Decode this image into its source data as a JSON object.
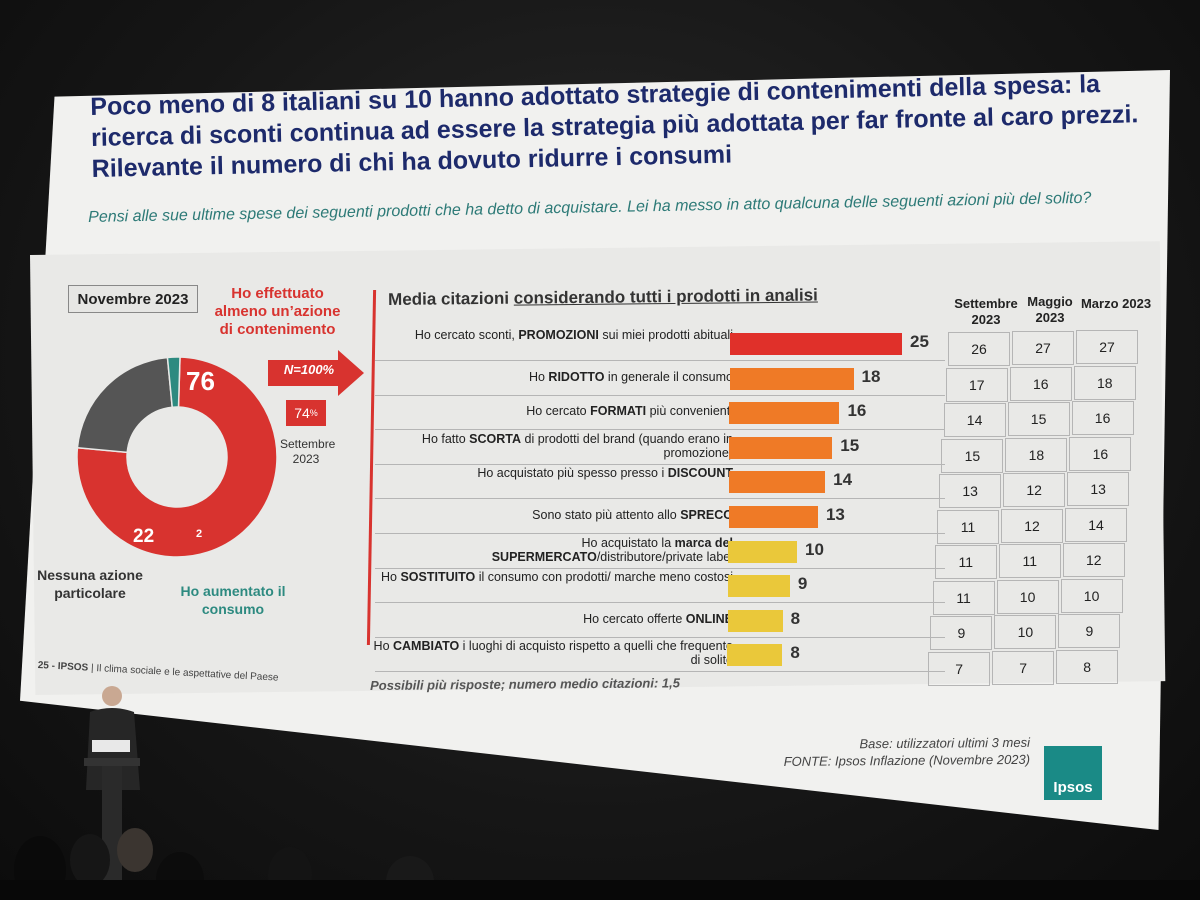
{
  "slide": {
    "title": "Poco meno di 8 italiani su 10 hanno adottato strategie di contenimenti della spesa: la ricerca di sconti continua ad essere la strategia più adottata per far fronte al caro prezzi. Rilevante il numero di chi ha dovuto ridurre i consumi",
    "subtitle": "Pensi alle sue ultime spese dei seguenti prodotti che ha detto di acquistare. Lei ha messo in atto qualcuna delle seguenti azioni più del solito?",
    "period_box": "Novembre 2023",
    "action_label": "Ho effettuato almeno un’azione di contenimento",
    "arrow_label": "N=100%",
    "sep_value": "74",
    "sep_unit": "%",
    "sep_label": "Settembre 2023",
    "donut": {
      "values": [
        76,
        22,
        2
      ],
      "labels": [
        "76",
        "22",
        "2"
      ],
      "colors": [
        "#d8332f",
        "#555555",
        "#2d8a80"
      ]
    },
    "legend_none": "Nessuna azione particolare",
    "legend_more": "Ho aumentato il consumo",
    "chart_title_prefix": "Media citazioni ",
    "chart_title_underlined": "considerando tutti i prodotti in analisi",
    "columns": [
      "Settembre 2023",
      "Maggio 2023",
      "Marzo 2023"
    ],
    "footnote": "Possibili più risposte; numero medio citazioni: 1,5",
    "page_footer_num": "25 - IPSOS",
    "page_footer_text": " | Il clima sociale e le aspettative del Paese",
    "base_line1": "Base: utilizzatori ultimi 3 mesi",
    "base_line2": "FONTE: Ipsos Inflazione (Novembre 2023)",
    "logo": "Ipsos"
  },
  "chart_data": {
    "type": "bar",
    "categories": [
      "Ho cercato sconti, PROMOZIONI sui miei prodotti abituali",
      "Ho RIDOTTO in generale il consumo",
      "Ho cercato FORMATI più convenienti",
      "Ho fatto SCORTA di prodotti del brand (quando erano in promozione)",
      "Ho acquistato più spesso presso i DISCOUNT",
      "Sono stato più attento allo SPRECO",
      "Ho acquistato la marca del SUPERMERCATO/distributore/private label",
      "Ho SOSTITUITO il consumo con prodotti/ marche meno costosi",
      "Ho cercato offerte ONLINE",
      "Ho CAMBIATO i luoghi di acquisto rispetto a quelli che frequento di solito"
    ],
    "rows": [
      {
        "pre": "Ho cercato sconti, ",
        "b": "PROMOZIONI",
        "post": " sui miei prodotti abituali",
        "value": "25",
        "color": "#e0302a",
        "sep": "26",
        "mag": "27",
        "mar": "27"
      },
      {
        "pre": "Ho ",
        "b": "RIDOTTO",
        "post": " in generale il consumo",
        "value": "18",
        "color": "#ef7a26",
        "sep": "17",
        "mag": "16",
        "mar": "18"
      },
      {
        "pre": "Ho cercato ",
        "b": "FORMATI",
        "post": " più convenienti",
        "value": "16",
        "color": "#ef7a26",
        "sep": "14",
        "mag": "15",
        "mar": "16"
      },
      {
        "pre": "Ho fatto ",
        "b": "SCORTA",
        "post": " di prodotti del brand (quando erano in promozione)",
        "value": "15",
        "color": "#ef7a26",
        "sep": "15",
        "mag": "18",
        "mar": "16"
      },
      {
        "pre": "Ho acquistato più spesso presso i ",
        "b": "DISCOUNT",
        "post": "",
        "value": "14",
        "color": "#ef7a26",
        "sep": "13",
        "mag": "12",
        "mar": "13"
      },
      {
        "pre": "Sono stato più attento allo ",
        "b": "SPRECO",
        "post": "",
        "value": "13",
        "color": "#ef7a26",
        "sep": "11",
        "mag": "12",
        "mar": "14"
      },
      {
        "pre": "Ho acquistato la ",
        "b": "marca del SUPERMERCATO",
        "post": "/distributore/private label",
        "value": "10",
        "color": "#eac83a",
        "sep": "11",
        "mag": "11",
        "mar": "12"
      },
      {
        "pre": "Ho ",
        "b": "SOSTITUITO",
        "post": " il consumo con prodotti/ marche meno costosi",
        "value": "9",
        "color": "#eac83a",
        "sep": "11",
        "mag": "10",
        "mar": "10"
      },
      {
        "pre": "Ho cercato offerte ",
        "b": "ONLINE",
        "post": "",
        "value": "8",
        "color": "#eac83a",
        "sep": "9",
        "mag": "10",
        "mar": "9"
      },
      {
        "pre": "Ho ",
        "b": "CAMBIATO",
        "post": " i luoghi di acquisto rispetto a quelli che frequento di solito",
        "value": "8",
        "color": "#eac83a",
        "sep": "7",
        "mag": "7",
        "mar": "8"
      }
    ],
    "xlim": [
      0,
      25
    ]
  }
}
